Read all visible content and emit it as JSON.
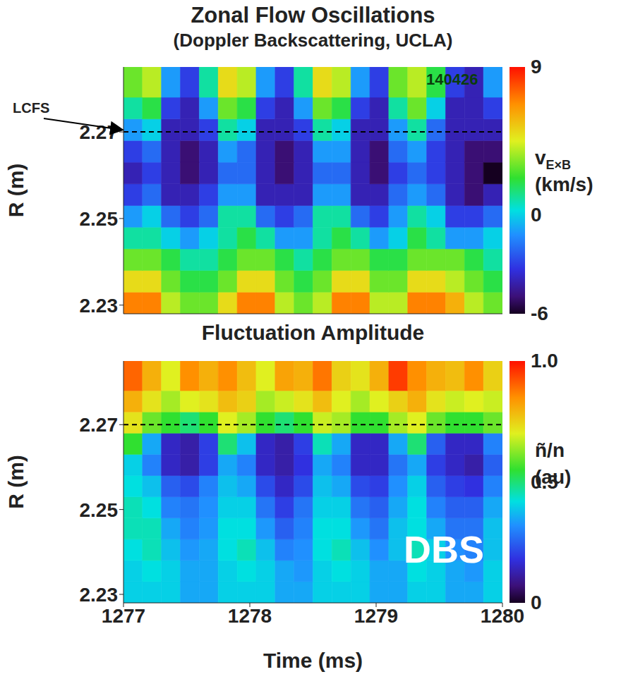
{
  "chart_data": [
    {
      "type": "heatmap",
      "title": "Zonal Flow Oscillations",
      "subtitle": "(Doppler Backscattering, UCLA)",
      "annotation": "140426",
      "y_label": "R (m)",
      "tick_labels": "y",
      "lcfs": {
        "value": 2.27,
        "label": "LCFS"
      },
      "xlim": [
        1277,
        1280
      ],
      "ylim": [
        2.228,
        2.285
      ],
      "yticks": [
        2.23,
        2.25,
        2.27
      ],
      "x": [
        1277.075,
        1277.225,
        1277.375,
        1277.525,
        1277.675,
        1277.825,
        1277.975,
        1278.125,
        1278.275,
        1278.425,
        1278.575,
        1278.725,
        1278.875,
        1279.025,
        1279.175,
        1279.325,
        1279.475,
        1279.625,
        1279.775,
        1279.925
      ],
      "y": [
        2.2305,
        2.2355,
        2.2405,
        2.2455,
        2.2505,
        2.2555,
        2.2605,
        2.2655,
        2.2705,
        2.2755,
        2.2805
      ],
      "cells": [
        [
          7,
          7,
          4,
          3,
          3,
          5,
          7,
          7,
          4,
          3,
          4,
          7,
          7,
          4,
          4,
          7,
          7,
          6,
          4,
          3
        ],
        [
          5,
          5,
          3,
          2,
          2,
          3,
          5,
          5,
          3,
          2,
          3,
          5,
          5,
          3,
          3,
          5,
          5,
          4,
          3,
          2
        ],
        [
          3,
          3,
          2,
          1,
          1,
          2,
          3,
          3,
          2,
          1,
          2,
          3,
          3,
          2,
          2,
          3,
          3,
          3,
          2,
          1
        ],
        [
          1,
          1,
          0,
          -1,
          0,
          1,
          2,
          1,
          -1,
          -1,
          1,
          2,
          1,
          -1,
          0,
          2,
          1,
          -1,
          -1,
          0
        ],
        [
          -1,
          0,
          -2,
          -3,
          -2,
          1,
          1,
          -2,
          -3,
          -2,
          1,
          1,
          -2,
          -3,
          -1,
          1,
          0,
          -3,
          -3,
          -2
        ],
        [
          -3,
          -2,
          -4,
          -4,
          -3,
          -1,
          -1,
          -4,
          -4,
          -4,
          -1,
          -1,
          -4,
          -4,
          -2,
          -1,
          -2,
          -4,
          -5,
          -4
        ],
        [
          -4,
          -3,
          -4,
          -5,
          -4,
          -2,
          -2,
          -4,
          -5,
          -4,
          -2,
          -2,
          -4,
          -5,
          -3,
          -2,
          -3,
          -4,
          -5,
          -6
        ],
        [
          -3,
          -2,
          -4,
          -5,
          -4,
          -1,
          -2,
          -4,
          -5,
          -4,
          -1,
          -1,
          -4,
          -5,
          -2,
          -1,
          -3,
          -4,
          -5,
          -5
        ],
        [
          -1,
          0,
          -4,
          -4,
          -3,
          1,
          0,
          -4,
          -4,
          -3,
          1,
          0,
          -4,
          -4,
          -1,
          1,
          -2,
          -4,
          -4,
          -4
        ],
        [
          1,
          2,
          -3,
          -4,
          -1,
          3,
          2,
          -3,
          -4,
          -1,
          3,
          2,
          -3,
          -4,
          1,
          3,
          0,
          -4,
          -4,
          -3
        ],
        [
          3,
          4,
          -1,
          -3,
          1,
          5,
          4,
          -1,
          -3,
          1,
          5,
          4,
          -1,
          -3,
          3,
          4,
          2,
          -3,
          -4,
          -1
        ]
      ],
      "colorbar": {
        "range": [
          -6,
          9
        ],
        "ticks": [
          9,
          0,
          -6
        ],
        "symbol": "v",
        "subscript": "E×B",
        "unit": "(km/s)"
      }
    },
    {
      "type": "heatmap",
      "title": "Fluctuation Amplitude",
      "annotation": "DBS",
      "y_label": "R (m)",
      "x_label": "Time (ms)",
      "lcfs": {
        "value": 2.27
      },
      "xlim": [
        1277,
        1280
      ],
      "xticks": [
        1277,
        1278,
        1279,
        1280
      ],
      "ylim": [
        2.228,
        2.285
      ],
      "yticks": [
        2.23,
        2.25,
        2.27
      ],
      "x": [
        1277.075,
        1277.225,
        1277.375,
        1277.525,
        1277.675,
        1277.825,
        1277.975,
        1278.125,
        1278.275,
        1278.425,
        1278.575,
        1278.725,
        1278.875,
        1279.025,
        1279.175,
        1279.325,
        1279.475,
        1279.625,
        1279.775,
        1279.925
      ],
      "y": [
        2.2305,
        2.2355,
        2.2405,
        2.2455,
        2.2505,
        2.2555,
        2.2605,
        2.2655,
        2.2705,
        2.2755,
        2.2805
      ],
      "cells": [
        [
          0.4,
          0.4,
          0.4,
          0.35,
          0.35,
          0.4,
          0.4,
          0.4,
          0.35,
          0.35,
          0.4,
          0.4,
          0.4,
          0.35,
          0.35,
          0.4,
          0.4,
          0.35,
          0.35,
          0.4
        ],
        [
          0.4,
          0.42,
          0.4,
          0.35,
          0.35,
          0.4,
          0.42,
          0.4,
          0.35,
          0.33,
          0.4,
          0.42,
          0.4,
          0.35,
          0.35,
          0.42,
          0.4,
          0.35,
          0.33,
          0.4
        ],
        [
          0.42,
          0.45,
          0.38,
          0.33,
          0.35,
          0.42,
          0.45,
          0.38,
          0.3,
          0.32,
          0.42,
          0.45,
          0.38,
          0.32,
          0.38,
          0.45,
          0.4,
          0.32,
          0.3,
          0.38
        ],
        [
          0.45,
          0.45,
          0.35,
          0.3,
          0.33,
          0.42,
          0.42,
          0.33,
          0.25,
          0.3,
          0.42,
          0.42,
          0.33,
          0.28,
          0.38,
          0.42,
          0.35,
          0.28,
          0.28,
          0.38
        ],
        [
          0.45,
          0.42,
          0.3,
          0.28,
          0.32,
          0.4,
          0.4,
          0.28,
          0.2,
          0.28,
          0.4,
          0.4,
          0.28,
          0.25,
          0.35,
          0.42,
          0.3,
          0.25,
          0.25,
          0.35
        ],
        [
          0.42,
          0.38,
          0.25,
          0.22,
          0.3,
          0.38,
          0.35,
          0.22,
          0.15,
          0.22,
          0.38,
          0.35,
          0.22,
          0.2,
          0.32,
          0.4,
          0.25,
          0.2,
          0.18,
          0.3
        ],
        [
          0.4,
          0.3,
          0.15,
          0.12,
          0.2,
          0.35,
          0.3,
          0.15,
          0.12,
          0.18,
          0.35,
          0.3,
          0.15,
          0.15,
          0.28,
          0.35,
          0.2,
          0.15,
          0.12,
          0.25
        ],
        [
          0.55,
          0.35,
          0.15,
          0.12,
          0.2,
          0.5,
          0.38,
          0.15,
          0.12,
          0.2,
          0.45,
          0.35,
          0.15,
          0.15,
          0.35,
          0.5,
          0.25,
          0.15,
          0.15,
          0.3
        ],
        [
          0.72,
          0.6,
          0.55,
          0.5,
          0.55,
          0.7,
          0.65,
          0.55,
          0.5,
          0.55,
          0.68,
          0.65,
          0.55,
          0.55,
          0.65,
          0.7,
          0.6,
          0.55,
          0.55,
          0.6
        ],
        [
          0.8,
          0.72,
          0.65,
          0.7,
          0.72,
          0.78,
          0.75,
          0.65,
          0.68,
          0.72,
          0.78,
          0.7,
          0.65,
          0.7,
          0.75,
          0.8,
          0.72,
          0.68,
          0.7,
          0.68
        ],
        [
          0.9,
          0.8,
          0.7,
          0.85,
          0.8,
          0.85,
          0.78,
          0.7,
          0.82,
          0.8,
          0.88,
          0.75,
          0.72,
          0.8,
          0.95,
          0.85,
          0.8,
          0.78,
          0.85,
          0.75
        ]
      ],
      "colorbar": {
        "range": [
          0,
          1
        ],
        "ticks": [
          {
            "value": 1,
            "label": "1.0"
          },
          0.5,
          0
        ],
        "symbol": "ñ/n",
        "unit": "(au)"
      }
    }
  ]
}
